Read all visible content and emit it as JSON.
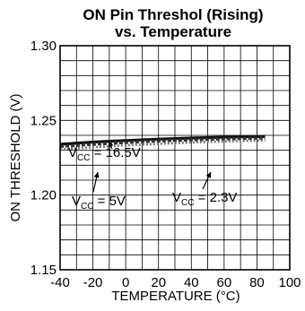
{
  "chart_data": {
    "type": "line",
    "title_line1": "ON Pin Threshol (Rising)",
    "title_line2": "vs. Temperature",
    "xlabel": "TEMPERATURE (°C)",
    "ylabel": "ON THRESHOLD (V)",
    "xlim": [
      -40,
      100
    ],
    "ylim": [
      1.15,
      1.3
    ],
    "x_major_ticks": [
      -40,
      -20,
      0,
      20,
      40,
      60,
      80,
      100
    ],
    "x_tick_labels": [
      "-40",
      "-20",
      "0",
      "20",
      "40",
      "60",
      "80",
      "100"
    ],
    "y_major_ticks": [
      1.15,
      1.2,
      1.25,
      1.3
    ],
    "y_tick_labels": [
      "1.15",
      "1.20",
      "1.25",
      "1.30"
    ],
    "x_minor_step": 10,
    "y_minor_step": 0.01,
    "grid": true,
    "series": [
      {
        "label_main": "V",
        "label_sub": "CC",
        "label_rest": " = 16.5V",
        "x": [
          -40,
          -20,
          0,
          20,
          40,
          60,
          85
        ],
        "y": [
          1.234,
          1.2355,
          1.2365,
          1.2375,
          1.2382,
          1.2388,
          1.2392
        ],
        "style": "solid"
      },
      {
        "label_main": "V",
        "label_sub": "CC",
        "label_rest": " = 5V",
        "x": [
          -40,
          -20,
          0,
          20,
          40,
          60,
          85
        ],
        "y": [
          1.2325,
          1.234,
          1.2352,
          1.2362,
          1.237,
          1.2376,
          1.2382
        ],
        "style": "dash"
      },
      {
        "label_main": "V",
        "label_sub": "CC",
        "label_rest": " = 2.3V",
        "x": [
          -40,
          -20,
          0,
          20,
          40,
          60,
          85
        ],
        "y": [
          1.2305,
          1.232,
          1.2333,
          1.2343,
          1.2352,
          1.2359,
          1.2366
        ],
        "style": "dot"
      }
    ]
  }
}
